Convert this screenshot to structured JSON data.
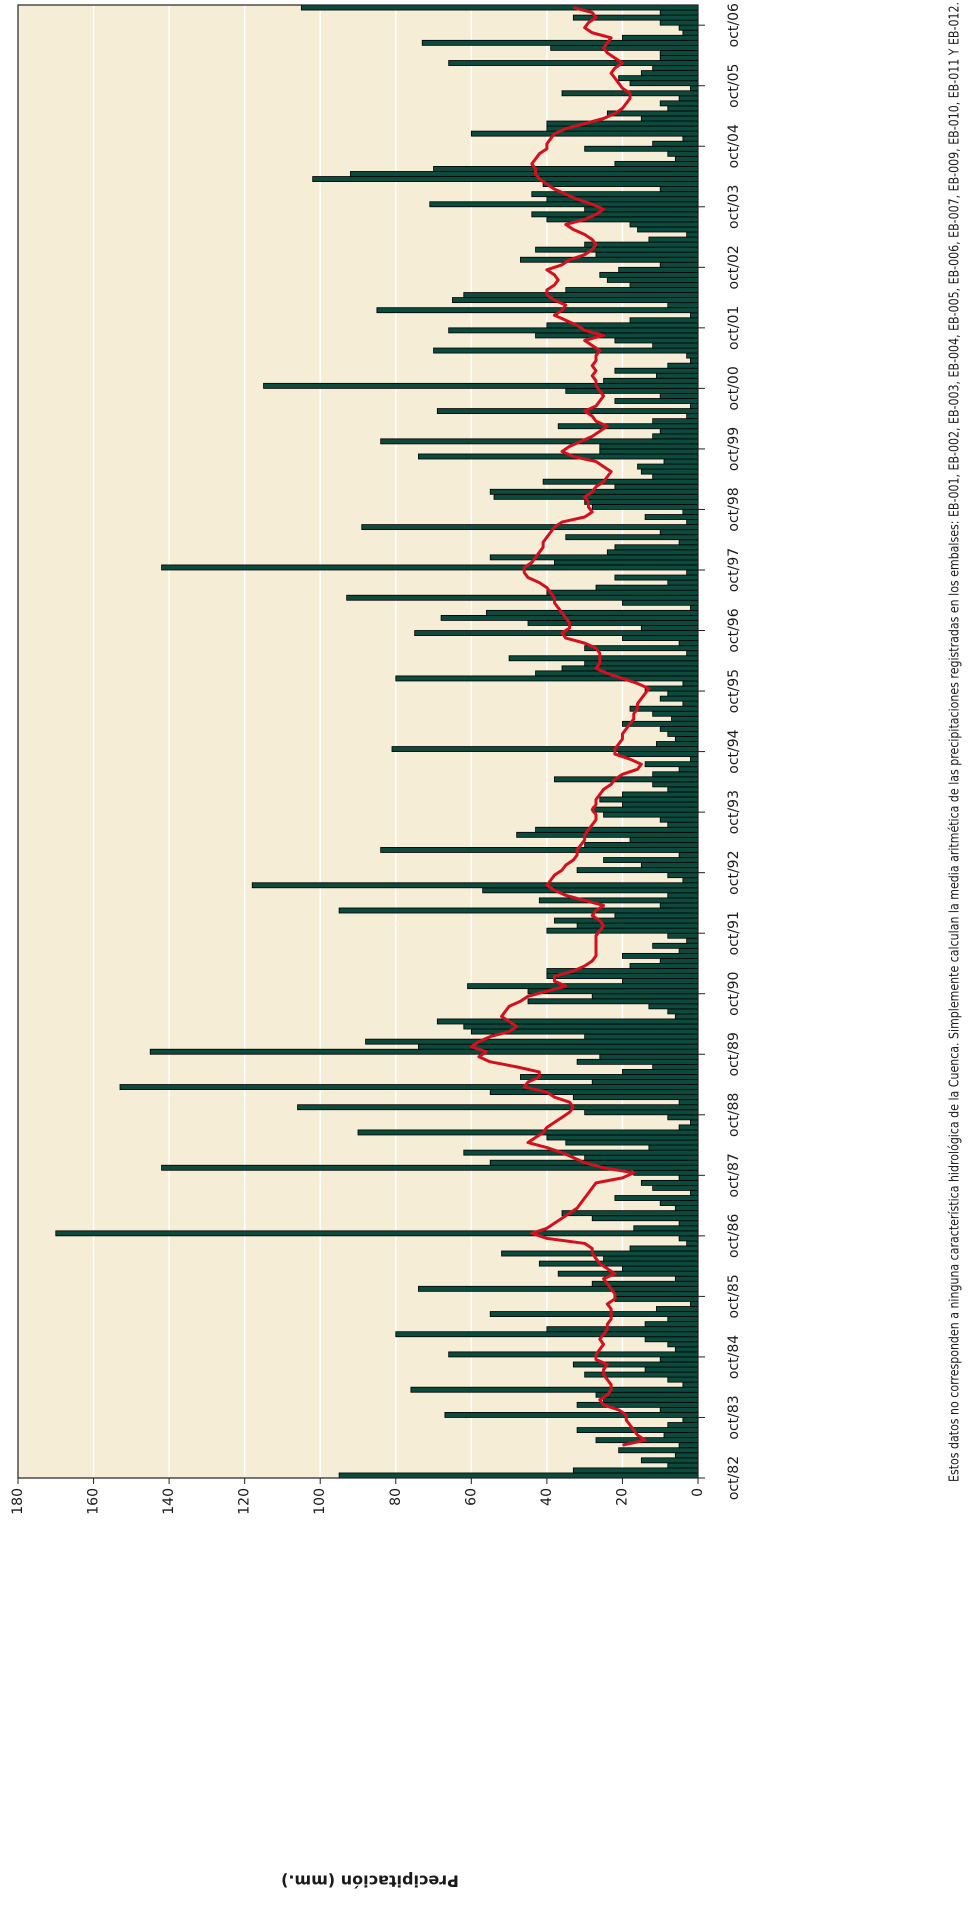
{
  "chart_data": {
    "type": "bar",
    "y_label": "Precipitación (mm.)",
    "note": "Estos datos no corresponden a ninguna característica hidrológica de la Cuenca. Simplemente calculan la media aritmética de las precipitaciones registradas en los embalses: EB-001, EB-002, EB-003, EB-004, EB-005, EB-006, EB-007, EB-009, EB-010, EB-011 Y EB-012.",
    "ylim": [
      0,
      180
    ],
    "yticks": [
      0,
      20,
      40,
      60,
      80,
      100,
      120,
      140,
      160,
      180
    ],
    "grid": true,
    "background": "#f6edd6",
    "categories": [
      "oct/82",
      null,
      null,
      null,
      null,
      null,
      null,
      null,
      null,
      null,
      null,
      null,
      "oct/83",
      null,
      null,
      null,
      null,
      null,
      null,
      null,
      null,
      null,
      null,
      null,
      "oct/84",
      null,
      null,
      null,
      null,
      null,
      null,
      null,
      null,
      null,
      null,
      null,
      "oct/85",
      null,
      null,
      null,
      null,
      null,
      null,
      null,
      null,
      null,
      null,
      null,
      "oct/86",
      null,
      null,
      null,
      null,
      null,
      null,
      null,
      null,
      null,
      null,
      null,
      "oct/87",
      null,
      null,
      null,
      null,
      null,
      null,
      null,
      null,
      null,
      null,
      null,
      "oct/88",
      null,
      null,
      null,
      null,
      null,
      null,
      null,
      null,
      null,
      null,
      null,
      "oct/89",
      null,
      null,
      null,
      null,
      null,
      null,
      null,
      null,
      null,
      null,
      null,
      "oct/90",
      null,
      null,
      null,
      null,
      null,
      null,
      null,
      null,
      null,
      null,
      null,
      "oct/91",
      null,
      null,
      null,
      null,
      null,
      null,
      null,
      null,
      null,
      null,
      null,
      "oct/92",
      null,
      null,
      null,
      null,
      null,
      null,
      null,
      null,
      null,
      null,
      null,
      "oct/93",
      null,
      null,
      null,
      null,
      null,
      null,
      null,
      null,
      null,
      null,
      null,
      "oct/94",
      null,
      null,
      null,
      null,
      null,
      null,
      null,
      null,
      null,
      null,
      null,
      "oct/95",
      null,
      null,
      null,
      null,
      null,
      null,
      null,
      null,
      null,
      null,
      null,
      "oct/96",
      null,
      null,
      null,
      null,
      null,
      null,
      null,
      null,
      null,
      null,
      null,
      "oct/97",
      null,
      null,
      null,
      null,
      null,
      null,
      null,
      null,
      null,
      null,
      null,
      "oct/98",
      null,
      null,
      null,
      null,
      null,
      null,
      null,
      null,
      null,
      null,
      null,
      "oct/99",
      null,
      null,
      null,
      null,
      null,
      null,
      null,
      null,
      null,
      null,
      null,
      "oct/00",
      null,
      null,
      null,
      null,
      null,
      null,
      null,
      null,
      null,
      null,
      null,
      "oct/01",
      null,
      null,
      null,
      null,
      null,
      null,
      null,
      null,
      null,
      null,
      null,
      "oct/02",
      null,
      null,
      null,
      null,
      null,
      null,
      null,
      null,
      null,
      null,
      null,
      "oct/03",
      null,
      null,
      null,
      null,
      null,
      null,
      null,
      null,
      null,
      null,
      null,
      "oct/04",
      null,
      null,
      null,
      null,
      null,
      null,
      null,
      null,
      null,
      null,
      null,
      "oct/05",
      null,
      null,
      null,
      null,
      null,
      null,
      null,
      null,
      null,
      null,
      null,
      "oct/06",
      null,
      null,
      null
    ],
    "series": [
      {
        "type": "bar",
        "color": "#0b4a3c",
        "values": [
          95,
          33,
          8,
          15,
          6,
          21,
          5,
          27,
          9,
          32,
          8,
          4,
          67,
          10,
          32,
          25,
          27,
          76,
          4,
          8,
          30,
          14,
          33,
          10,
          66,
          6,
          8,
          14,
          80,
          40,
          14,
          8,
          55,
          11,
          2,
          22,
          22,
          74,
          28,
          6,
          37,
          20,
          42,
          25,
          52,
          18,
          3,
          5,
          170,
          17,
          5,
          28,
          36,
          6,
          10,
          22,
          2,
          12,
          15,
          5,
          17,
          142,
          55,
          30,
          62,
          13,
          35,
          40,
          90,
          5,
          2,
          8,
          30,
          106,
          5,
          33,
          55,
          153,
          28,
          47,
          20,
          12,
          32,
          26,
          145,
          74,
          88,
          30,
          60,
          62,
          69,
          6,
          8,
          13,
          45,
          28,
          45,
          61,
          20,
          40,
          40,
          18,
          10,
          20,
          5,
          12,
          3,
          8,
          40,
          32,
          38,
          22,
          95,
          10,
          42,
          8,
          57,
          118,
          4,
          8,
          32,
          15,
          25,
          5,
          84,
          30,
          18,
          48,
          43,
          8,
          10,
          25,
          28,
          20,
          26,
          20,
          8,
          12,
          38,
          12,
          5,
          14,
          2,
          21,
          81,
          11,
          6,
          8,
          10,
          20,
          7,
          12,
          18,
          4,
          10,
          8,
          14,
          4,
          80,
          43,
          36,
          30,
          50,
          3,
          30,
          5,
          20,
          75,
          15,
          45,
          68,
          56,
          2,
          20,
          93,
          40,
          27,
          8,
          22,
          3,
          142,
          38,
          55,
          24,
          22,
          5,
          35,
          10,
          89,
          3,
          14,
          4,
          28,
          30,
          54,
          55,
          22,
          41,
          12,
          15,
          16,
          9,
          74,
          26,
          26,
          84,
          12,
          10,
          37,
          12,
          3,
          69,
          2,
          22,
          10,
          35,
          115,
          25,
          11,
          22,
          8,
          2,
          3,
          70,
          12,
          22,
          43,
          66,
          40,
          18,
          2,
          85,
          8,
          65,
          62,
          35,
          18,
          24,
          26,
          21,
          10,
          47,
          27,
          43,
          30,
          13,
          3,
          16,
          18,
          40,
          44,
          30,
          71,
          40,
          44,
          10,
          41,
          102,
          92,
          70,
          22,
          6,
          8,
          30,
          12,
          4,
          60,
          40,
          40,
          15,
          24,
          8,
          10,
          5,
          36,
          2,
          18,
          21,
          15,
          12,
          66,
          10,
          10,
          39,
          73,
          20,
          4,
          5,
          10,
          33,
          10,
          105
        ]
      },
      {
        "type": "line",
        "color": "#d4101e",
        "values": [
          null,
          null,
          null,
          null,
          null,
          null,
          20,
          14,
          16,
          17,
          18,
          19,
          19,
          21,
          25,
          26,
          24,
          23,
          23,
          24,
          25,
          25,
          24,
          27,
          27,
          26,
          25,
          26,
          25,
          24,
          24,
          23,
          23,
          23,
          24,
          22,
          22,
          23,
          24,
          25,
          22,
          24,
          26,
          27,
          28,
          28,
          30,
          40,
          44,
          40,
          38,
          36,
          34,
          32,
          31,
          30,
          29,
          28,
          27,
          20,
          17,
          25,
          30,
          33,
          36,
          40,
          45,
          43,
          41,
          40,
          38,
          36,
          34,
          33,
          34,
          38,
          40,
          46,
          45,
          42,
          42,
          48,
          55,
          58,
          56,
          60,
          58,
          55,
          50,
          48,
          50,
          52,
          51,
          50,
          47,
          45,
          40,
          35,
          38,
          38,
          33,
          30,
          28,
          27,
          27,
          27,
          27,
          27,
          26,
          25,
          26,
          28,
          27,
          25,
          30,
          35,
          38,
          40,
          39,
          38,
          36,
          35,
          33,
          32,
          32,
          31,
          30,
          30,
          29,
          28,
          27,
          27,
          28,
          27,
          27,
          26,
          25,
          23,
          22,
          20,
          16,
          15,
          18,
          22,
          22,
          21,
          20,
          20,
          19,
          18,
          17,
          17,
          16,
          16,
          15,
          14,
          13,
          16,
          20,
          24,
          27,
          26,
          26,
          26,
          27,
          30,
          35,
          36,
          34,
          34,
          35,
          36,
          37,
          38,
          38,
          39,
          40,
          42,
          45,
          46,
          46,
          44,
          43,
          42,
          41,
          41,
          40,
          39,
          38,
          36,
          30,
          28,
          29,
          29,
          30,
          28,
          27,
          25,
          24,
          23,
          25,
          27,
          33,
          36,
          34,
          31,
          28,
          26,
          24,
          27,
          28,
          30,
          27,
          26,
          25,
          26,
          27,
          27,
          28,
          27,
          28,
          27,
          27,
          26,
          28,
          30,
          25,
          30,
          32,
          35,
          38,
          36,
          35,
          38,
          40,
          40,
          38,
          37,
          38,
          40,
          36,
          34,
          30,
          28,
          27,
          28,
          30,
          33,
          35,
          30,
          27,
          25,
          28,
          32,
          35,
          38,
          40,
          42,
          43,
          43,
          44,
          43,
          42,
          40,
          40,
          39,
          38,
          35,
          30,
          25,
          22,
          20,
          19,
          18,
          18,
          20,
          21,
          22,
          23,
          22,
          20,
          22,
          24,
          25,
          24,
          23,
          28,
          30,
          29,
          27,
          28,
          33
        ]
      }
    ]
  }
}
